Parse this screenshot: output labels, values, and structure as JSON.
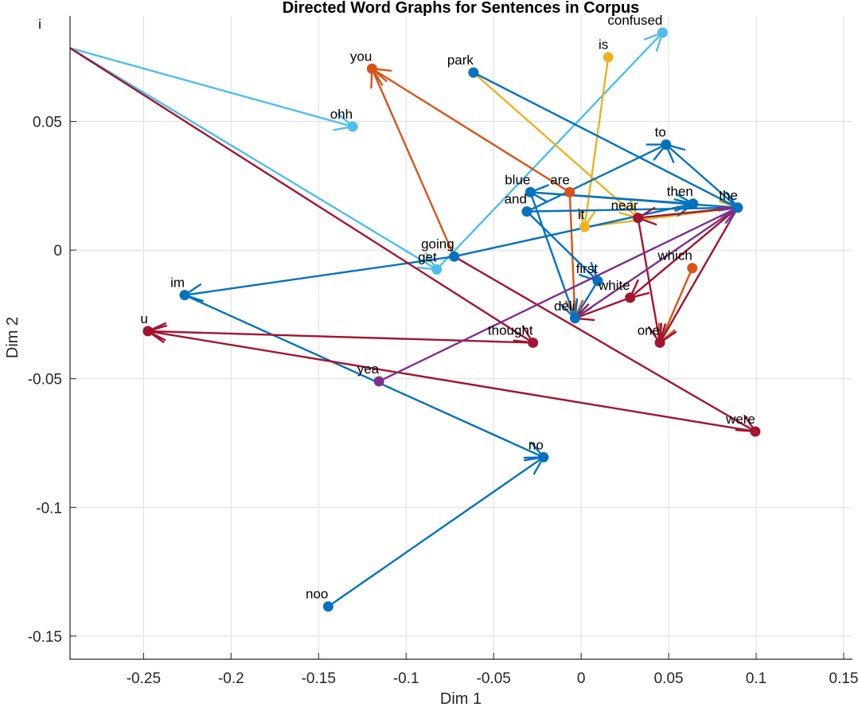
{
  "chart_data": {
    "type": "scatter",
    "title": "Directed Word Graphs for Sentences in Corpus",
    "xlabel": "Dim 1",
    "ylabel": "Dim 2",
    "xlim": [
      -0.292,
      0.155
    ],
    "ylim": [
      -0.159,
      0.091
    ],
    "xticks": [
      -0.25,
      -0.2,
      -0.15,
      -0.1,
      -0.05,
      0,
      0.05,
      0.1,
      0.15
    ],
    "yticks": [
      -0.15,
      -0.1,
      -0.05,
      0,
      0.05
    ],
    "xtick_labels": [
      "-0.25",
      "-0.2",
      "-0.15",
      "-0.1",
      "-0.05",
      "0",
      "0.05",
      "0.1",
      "0.15"
    ],
    "ytick_labels": [
      "-0.15",
      "-0.1",
      "-0.05",
      "0",
      "0.05"
    ],
    "grid": true,
    "nodes": [
      {
        "word": "i",
        "x": -0.292,
        "y": 0.0785,
        "color": "#4DBEEE",
        "show_marker": false
      },
      {
        "word": "ohh",
        "x": -0.1305,
        "y": 0.048,
        "color": "#4DBEEE"
      },
      {
        "word": "get",
        "x": -0.0825,
        "y": -0.0075,
        "color": "#4DBEEE"
      },
      {
        "word": "confused",
        "x": 0.0465,
        "y": 0.0845,
        "color": "#4DBEEE"
      },
      {
        "word": "you",
        "x": -0.1195,
        "y": 0.0705,
        "color": "#D95319"
      },
      {
        "word": "are",
        "x": -0.0065,
        "y": 0.0225,
        "color": "#D95319"
      },
      {
        "word": "which",
        "x": 0.0635,
        "y": -0.007,
        "color": "#D95319"
      },
      {
        "word": "is",
        "x": 0.0155,
        "y": 0.075,
        "color": "#EDB120"
      },
      {
        "word": "it",
        "x": 0.002,
        "y": 0.009,
        "color": "#EDB120"
      },
      {
        "word": "park",
        "x": -0.0615,
        "y": 0.069,
        "color": "#0072BD"
      },
      {
        "word": "to",
        "x": 0.0485,
        "y": 0.041,
        "color": "#0072BD"
      },
      {
        "word": "blue",
        "x": -0.029,
        "y": 0.0225,
        "color": "#0072BD"
      },
      {
        "word": "and",
        "x": -0.031,
        "y": 0.015,
        "color": "#0072BD"
      },
      {
        "word": "then",
        "x": 0.064,
        "y": 0.018,
        "color": "#0072BD"
      },
      {
        "word": "the",
        "x": 0.0895,
        "y": 0.0165,
        "color": "#0072BD"
      },
      {
        "word": "going",
        "x": -0.0725,
        "y": -0.0025,
        "color": "#0072BD"
      },
      {
        "word": "first",
        "x": 0.0095,
        "y": -0.012,
        "color": "#0072BD"
      },
      {
        "word": "deli",
        "x": -0.0035,
        "y": -0.0265,
        "color": "#0072BD"
      },
      {
        "word": "im",
        "x": -0.2265,
        "y": -0.0175,
        "color": "#0072BD"
      },
      {
        "word": "no",
        "x": -0.0215,
        "y": -0.0805,
        "color": "#0072BD"
      },
      {
        "word": "noo",
        "x": -0.1445,
        "y": -0.1385,
        "color": "#0072BD"
      },
      {
        "word": "near",
        "x": 0.0325,
        "y": 0.0125,
        "color": "#A2142F"
      },
      {
        "word": "white",
        "x": 0.028,
        "y": -0.0185,
        "color": "#A2142F"
      },
      {
        "word": "one",
        "x": 0.045,
        "y": -0.036,
        "color": "#A2142F"
      },
      {
        "word": "thought",
        "x": -0.0275,
        "y": -0.036,
        "color": "#A2142F"
      },
      {
        "word": "u",
        "x": -0.2475,
        "y": -0.0315,
        "color": "#A2142F"
      },
      {
        "word": "were",
        "x": 0.0995,
        "y": -0.0705,
        "color": "#A2142F"
      },
      {
        "word": "yea",
        "x": -0.1155,
        "y": -0.051,
        "color": "#7E2F8E"
      }
    ],
    "series": [
      {
        "color": "#4DBEEE",
        "edges": [
          [
            "i",
            "ohh"
          ],
          [
            "i",
            "get"
          ],
          [
            "get",
            "confused"
          ]
        ]
      },
      {
        "color": "#D95319",
        "edges": [
          [
            "going",
            "you"
          ],
          [
            "are",
            "deli"
          ],
          [
            "which",
            "one"
          ],
          [
            "are",
            "you"
          ]
        ]
      },
      {
        "color": "#EDB120",
        "edges": [
          [
            "is",
            "it"
          ],
          [
            "park",
            "near"
          ],
          [
            "it",
            "the"
          ]
        ]
      },
      {
        "color": "#0072BD",
        "edges": [
          [
            "park",
            "the"
          ],
          [
            "the",
            "to"
          ],
          [
            "and",
            "to"
          ],
          [
            "the",
            "blue"
          ],
          [
            "blue",
            "then"
          ],
          [
            "and",
            "the"
          ],
          [
            "blue",
            "deli"
          ],
          [
            "and",
            "first"
          ],
          [
            "first",
            "deli"
          ],
          [
            "going",
            "im"
          ],
          [
            "going",
            "then"
          ],
          [
            "im",
            "no"
          ],
          [
            "noo",
            "no"
          ]
        ]
      },
      {
        "color": "#A2142F",
        "edges": [
          [
            "i",
            "thought"
          ],
          [
            "thought",
            "u"
          ],
          [
            "were",
            "u"
          ],
          [
            "going",
            "were"
          ],
          [
            "the",
            "near"
          ],
          [
            "near",
            "one"
          ],
          [
            "the",
            "one"
          ],
          [
            "white",
            "deli"
          ],
          [
            "the",
            "white"
          ]
        ]
      },
      {
        "color": "#7E2F8E",
        "edges": [
          [
            "yea",
            "the"
          ],
          [
            "deli",
            "the"
          ]
        ]
      }
    ]
  }
}
